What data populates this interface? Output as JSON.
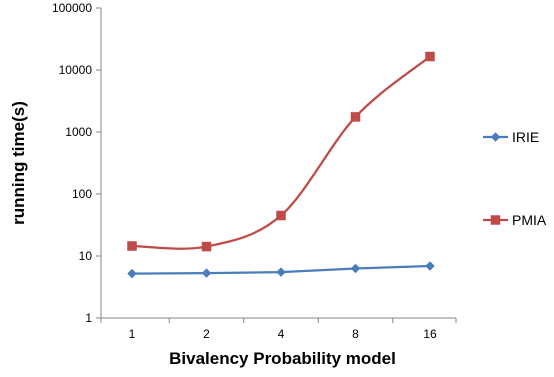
{
  "chart_data": {
    "type": "line",
    "title": "",
    "xlabel": "Bivalency Probability model",
    "ylabel": "running time(s)",
    "y_scale": "log",
    "ylim": [
      1,
      100000
    ],
    "y_ticks": [
      "1",
      "10",
      "100",
      "1000",
      "10000",
      "100000"
    ],
    "y_tick_values": [
      1,
      10,
      100,
      1000,
      10000,
      100000
    ],
    "categories": [
      "1",
      "2",
      "4",
      "8",
      "16"
    ],
    "grid": false,
    "legend_position": "right",
    "series": [
      {
        "name": "IRIE",
        "values": [
          5.2,
          5.3,
          5.5,
          6.3,
          6.9
        ],
        "color": "#4a7ebb",
        "marker": "diamond",
        "smooth": false
      },
      {
        "name": "PMIA",
        "values": [
          14.5,
          14.2,
          45,
          1750,
          16500
        ],
        "color": "#be4b48",
        "marker": "square",
        "smooth": true
      }
    ]
  }
}
